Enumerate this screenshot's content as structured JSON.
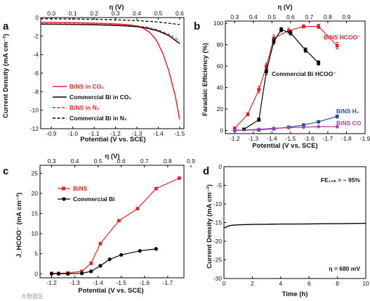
{
  "watermark": "大数据区",
  "panels": {
    "a": {
      "letter": "a",
      "top_label": "η (V)",
      "x_label": "Potential (V vs. SCE)",
      "y_label": "Current Density (mA cm⁻²)",
      "legend": [
        "BiNS in CO₂",
        "Commercial Bi in CO₂",
        "BiNS in N₂",
        "Commercial Bi in N₂"
      ]
    },
    "b": {
      "letter": "b",
      "top_label": "η (V)",
      "x_label": "Potential (V vs. SCE)",
      "y_label": "Faradaic Efficiency (%)",
      "annotations": [
        "BiNS HCOO⁻",
        "Commercial Bi HCOO⁻",
        "BiNS H₂",
        "BiNS CO"
      ]
    },
    "c": {
      "letter": "c",
      "top_label": "η (V)",
      "x_label": "Potential (V vs. SCE)",
      "y_label": "J_HCOO⁻ (mA cm⁻²)",
      "legend": [
        "BiNS",
        "Commercial Bi"
      ]
    },
    "d": {
      "letter": "d",
      "x_label": "Time (h)",
      "y_label": "Current Density (mA cm⁻²)",
      "annotations": [
        "FE₁₀ₕ = ~ 95%",
        "η = 680 mV"
      ]
    }
  },
  "chart_data": [
    {
      "id": "a",
      "type": "line",
      "xlabel": "Potential (V vs. SCE)",
      "ylabel": "Current Density (mA cm⁻²)",
      "top_axis_label": "η (V)",
      "xlim": [
        -0.85,
        -1.52
      ],
      "ylim": [
        -12,
        0
      ],
      "x_ticks": [
        -0.9,
        -1.0,
        -1.1,
        -1.2,
        -1.3,
        -1.4,
        -1.5
      ],
      "x_tick_labels": [
        "-0.9",
        "-1.0",
        "-1.1",
        "-1.2",
        "-1.3",
        "-1.4",
        "-1.5"
      ],
      "y_ticks": [
        0,
        -2,
        -4,
        -6,
        -8,
        -10,
        -12
      ],
      "y_tick_labels": [
        "0",
        "-2",
        "-4",
        "-6",
        "-8",
        "-10",
        "-12"
      ],
      "top_ticks": [
        0.0,
        0.1,
        0.2,
        0.3,
        0.4,
        0.5,
        0.6
      ],
      "top_tick_labels": [
        "0.0",
        "0.1",
        "0.2",
        "0.3",
        "0.4",
        "0.5",
        "0.6"
      ],
      "top_axis_offset": 0.9,
      "series": [
        {
          "name": "BiNS in CO₂",
          "color": "#d62728",
          "dash": "solid",
          "width": 1.5,
          "x": [
            -0.85,
            -1.0,
            -1.1,
            -1.2,
            -1.25,
            -1.3,
            -1.33,
            -1.36,
            -1.39,
            -1.42,
            -1.45,
            -1.48,
            -1.5
          ],
          "y": [
            -0.5,
            -0.55,
            -0.6,
            -0.68,
            -0.75,
            -0.9,
            -1.15,
            -1.6,
            -2.4,
            -3.8,
            -5.8,
            -8.5,
            -11.0
          ]
        },
        {
          "name": "Commercial Bi in CO₂",
          "color": "#000000",
          "dash": "solid",
          "width": 1.5,
          "x": [
            -0.85,
            -1.0,
            -1.1,
            -1.2,
            -1.25,
            -1.3,
            -1.35,
            -1.4,
            -1.45,
            -1.5
          ],
          "y": [
            -0.7,
            -0.74,
            -0.78,
            -0.84,
            -0.9,
            -0.98,
            -1.15,
            -1.45,
            -1.95,
            -2.8
          ]
        },
        {
          "name": "BiNS in N₂",
          "color": "#d62728",
          "dash": "dashed",
          "width": 1.3,
          "x": [
            -0.85,
            -1.0,
            -1.1,
            -1.2,
            -1.3,
            -1.35,
            -1.4,
            -1.45,
            -1.5
          ],
          "y": [
            -0.65,
            -0.68,
            -0.72,
            -0.78,
            -0.9,
            -1.05,
            -1.35,
            -1.8,
            -2.5
          ]
        },
        {
          "name": "Commercial Bi in N₂",
          "color": "#000000",
          "dash": "dashed",
          "width": 1.3,
          "x": [
            -0.85,
            -1.0,
            -1.1,
            -1.2,
            -1.3,
            -1.4,
            -1.5
          ],
          "y": [
            -0.12,
            -0.15,
            -0.18,
            -0.24,
            -0.32,
            -0.48,
            -0.75
          ]
        }
      ]
    },
    {
      "id": "b",
      "type": "line",
      "xlabel": "Potential (V vs. SCE)",
      "ylabel": "Faradaic Efficiency (%)",
      "top_axis_label": "η (V)",
      "xlim": [
        -1.15,
        -1.9
      ],
      "ylim": [
        -3,
        102
      ],
      "x_ticks": [
        -1.2,
        -1.3,
        -1.4,
        -1.5,
        -1.6,
        -1.7,
        -1.8,
        -1.9
      ],
      "x_tick_labels": [
        "-1.2",
        "-1.3",
        "-1.4",
        "-1.5",
        "-1.6",
        "-1.7",
        "-1.8",
        "-1.9"
      ],
      "y_ticks": [
        0,
        20,
        40,
        60,
        80,
        100
      ],
      "y_tick_labels": [
        "0",
        "20",
        "40",
        "60",
        "80",
        "100"
      ],
      "top_ticks": [
        0.3,
        0.4,
        0.5,
        0.6,
        0.7,
        0.8,
        0.9
      ],
      "top_tick_labels": [
        "0.3",
        "0.4",
        "0.5",
        "0.6",
        "0.7",
        "0.8",
        "0.9"
      ],
      "top_axis_offset": 0.9,
      "series": [
        {
          "name": "BiNS HCOO⁻",
          "color": "#d62728",
          "marker": "square",
          "width": 1.2,
          "x": [
            -1.2,
            -1.27,
            -1.33,
            -1.37,
            -1.41,
            -1.49,
            -1.57,
            -1.65,
            -1.75
          ],
          "y": [
            2,
            15,
            38,
            60,
            86,
            93,
            97,
            97,
            79
          ],
          "err": [
            1,
            1.5,
            3,
            3,
            3,
            2.5,
            1.5,
            2,
            3
          ]
        },
        {
          "name": "Commercial Bi HCOO⁻",
          "color": "#000000",
          "marker": "square",
          "width": 1.2,
          "x": [
            -1.25,
            -1.33,
            -1.37,
            -1.41,
            -1.45,
            -1.5,
            -1.58,
            -1.65
          ],
          "y": [
            1,
            10,
            55,
            83,
            94,
            91,
            75,
            63
          ],
          "err": [
            0.5,
            1.5,
            3,
            2.5,
            2,
            2,
            2,
            2
          ]
        },
        {
          "name": "BiNS H₂",
          "color": "#1f4fa8",
          "marker": "square",
          "width": 1.2,
          "x": [
            -1.2,
            -1.33,
            -1.41,
            -1.49,
            -1.57,
            -1.65,
            -1.75
          ],
          "y": [
            0,
            0.5,
            1.5,
            3,
            5,
            8,
            13
          ],
          "err": [
            0,
            0,
            0,
            0.5,
            1,
            1,
            1.5
          ]
        },
        {
          "name": "BiNS CO",
          "color": "#b23aa8",
          "marker": "diamond",
          "width": 1.2,
          "x": [
            -1.2,
            -1.33,
            -1.41,
            -1.49,
            -1.57,
            -1.65,
            -1.75
          ],
          "y": [
            0,
            1,
            2,
            2.5,
            3,
            3.5,
            3.5
          ],
          "err": [
            0,
            0,
            0,
            0,
            0,
            0,
            0
          ]
        }
      ]
    },
    {
      "id": "c",
      "type": "line",
      "xlabel": "Potential (V vs. SCE)",
      "ylabel": "J_HCOO⁻ (mA cm⁻²)",
      "top_axis_label": "η (V)",
      "xlim": [
        -1.15,
        -1.77
      ],
      "ylim": [
        -1,
        27
      ],
      "x_ticks": [
        -1.2,
        -1.3,
        -1.4,
        -1.5,
        -1.6,
        -1.7
      ],
      "x_tick_labels": [
        "-1.2",
        "-1.3",
        "-1.4",
        "-1.5",
        "-1.6",
        "-1.7"
      ],
      "y_ticks": [
        0,
        5,
        10,
        15,
        20,
        25
      ],
      "y_tick_labels": [
        "0",
        "5",
        "10",
        "15",
        "20",
        "25"
      ],
      "top_ticks": [
        0.3,
        0.4,
        0.5,
        0.6,
        0.7,
        0.8,
        0.9
      ],
      "top_tick_labels": [
        "0.3",
        "0.4",
        "0.5",
        "0.6",
        "0.7",
        "0.8",
        "0.9"
      ],
      "top_axis_offset": 0.9,
      "series": [
        {
          "name": "BiNS",
          "color": "#d62728",
          "marker": "square",
          "width": 1.2,
          "x": [
            -1.2,
            -1.23,
            -1.27,
            -1.33,
            -1.37,
            -1.41,
            -1.49,
            -1.57,
            -1.65,
            -1.75
          ],
          "y": [
            0.1,
            0.1,
            0.2,
            0.6,
            2.6,
            7.5,
            13.2,
            16.2,
            21.2,
            23.8
          ]
        },
        {
          "name": "Commercial Bi",
          "color": "#000000",
          "marker": "circle",
          "width": 1.2,
          "x": [
            -1.2,
            -1.23,
            -1.27,
            -1.33,
            -1.37,
            -1.41,
            -1.45,
            -1.5,
            -1.58,
            -1.65
          ],
          "y": [
            0,
            0,
            0,
            0.1,
            0.6,
            2.0,
            3.6,
            4.7,
            5.7,
            6.2
          ]
        }
      ]
    },
    {
      "id": "d",
      "type": "line",
      "xlabel": "Time (h)",
      "ylabel": "Current Density (mA cm⁻²)",
      "xlim": [
        0,
        10
      ],
      "ylim": [
        -30,
        0
      ],
      "x_ticks": [
        0,
        2,
        4,
        6,
        8,
        10
      ],
      "x_tick_labels": [
        "0",
        "2",
        "4",
        "6",
        "8",
        "10"
      ],
      "y_ticks": [
        0,
        -5,
        -10,
        -15,
        -20,
        -25,
        -30
      ],
      "y_tick_labels": [
        "0",
        "-5",
        "-10",
        "-15",
        "-20",
        "-25",
        "-30"
      ],
      "series": [
        {
          "name": "",
          "color": "#000000",
          "width": 1.4,
          "x": [
            0,
            0.15,
            0.3,
            0.6,
            1,
            2,
            3,
            4,
            5,
            6,
            7,
            8,
            9,
            10
          ],
          "y": [
            -16.4,
            -16.2,
            -15.9,
            -15.7,
            -15.6,
            -15.5,
            -15.45,
            -15.4,
            -15.4,
            -15.35,
            -15.3,
            -15.3,
            -15.25,
            -15.2
          ]
        }
      ]
    }
  ]
}
